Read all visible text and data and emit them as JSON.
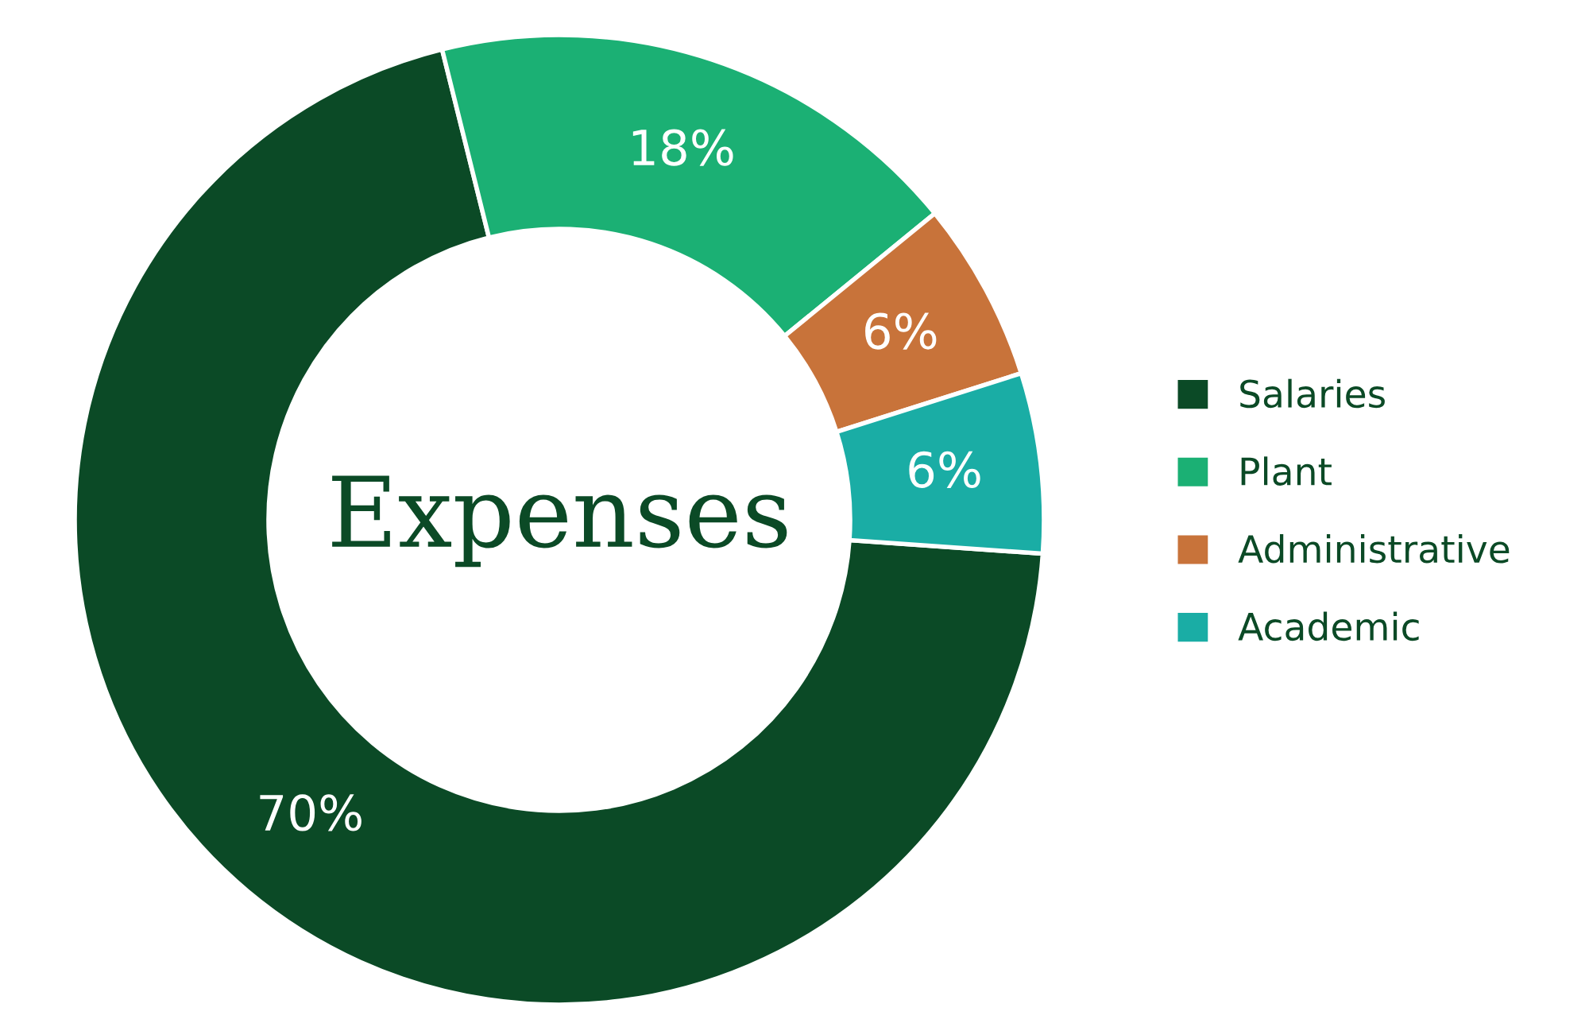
{
  "chart_data": {
    "type": "donut",
    "title": "Expenses",
    "categories": [
      "Salaries",
      "Plant",
      "Administrative",
      "Academic"
    ],
    "values": [
      70,
      18,
      6,
      6
    ],
    "colors": [
      "#0b4a26",
      "#1bb074",
      "#c8733a",
      "#1aada5"
    ],
    "value_labels": [
      "70%",
      "18%",
      "6%",
      "6%"
    ],
    "legend": "right"
  }
}
